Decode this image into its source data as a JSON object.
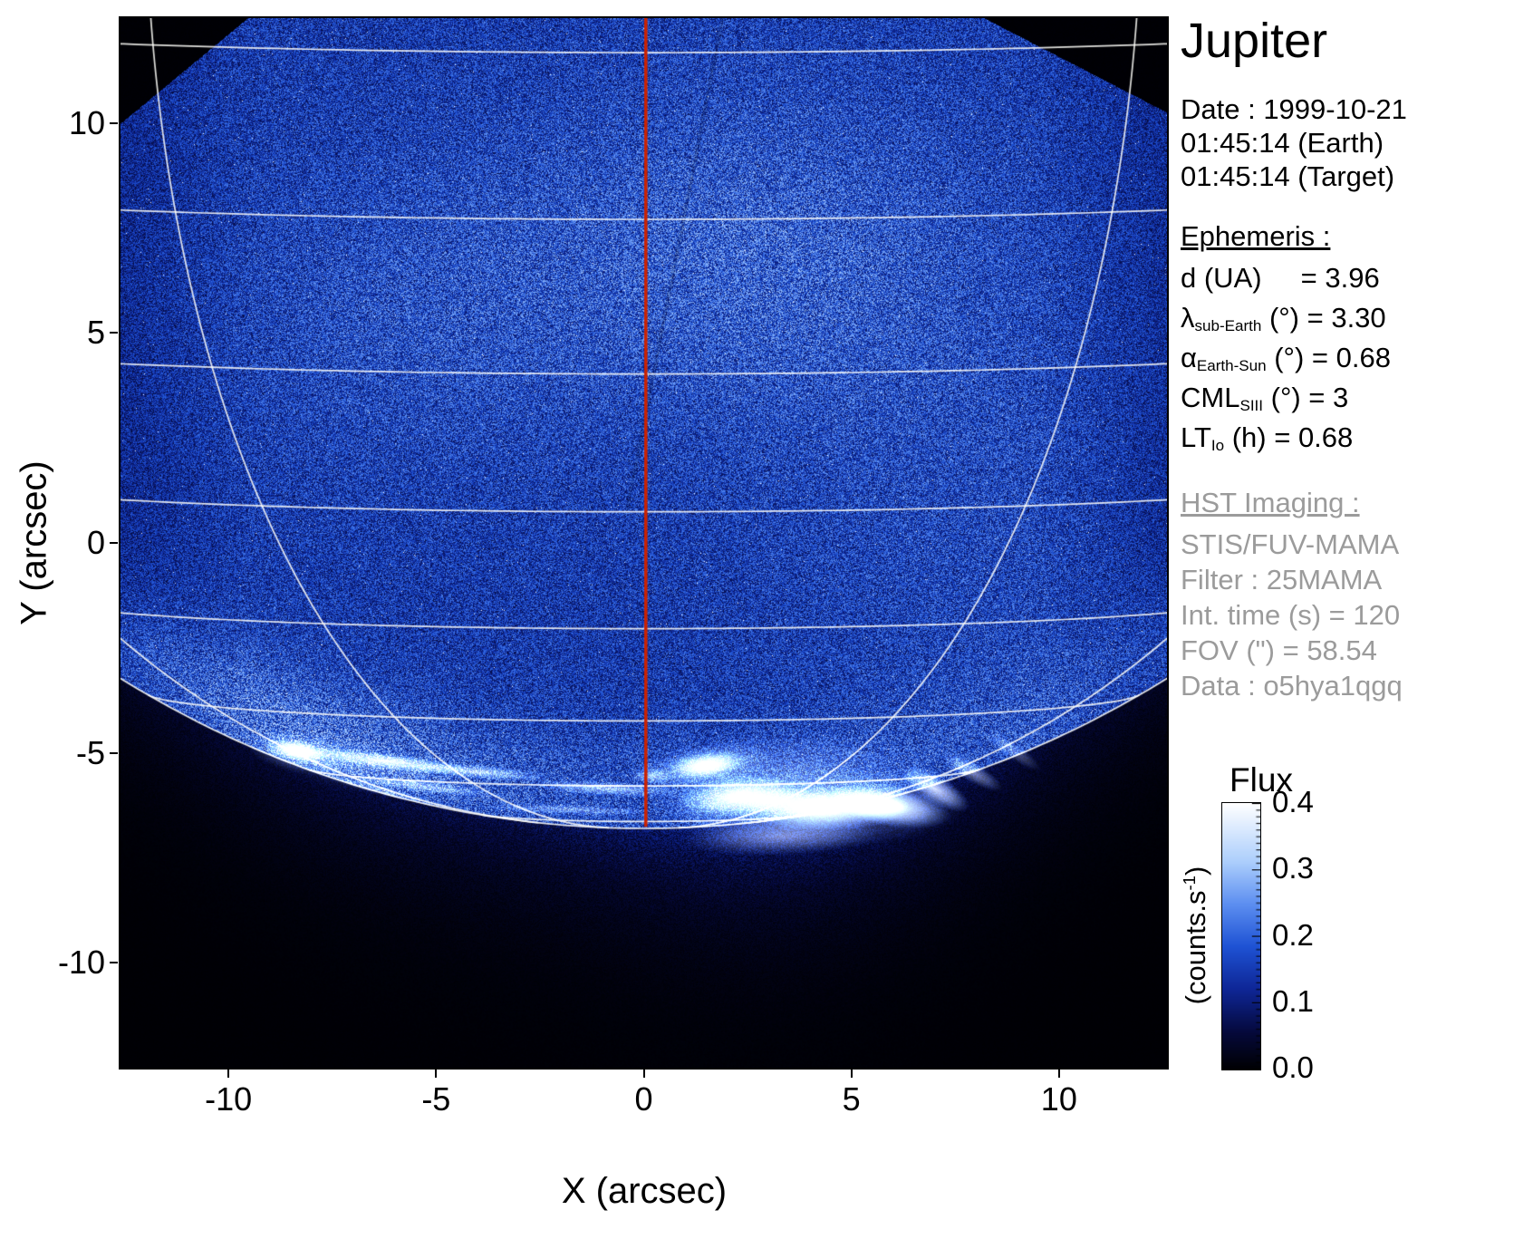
{
  "info_panel": {
    "title": "Jupiter",
    "date_line": "Date : 1999-10-21",
    "time_earth": "01:45:14 (Earth)",
    "time_target": "01:45:14 (Target)",
    "ephemeris_heading": "Ephemeris :",
    "ephemeris": [
      {
        "main": "d (UA)",
        "sub": "",
        "tail": "     = 3.96"
      },
      {
        "main": "λ",
        "sub": "sub-Earth",
        "tail": " (°) = 3.30"
      },
      {
        "main": "α",
        "sub": "Earth-Sun",
        "tail": " (°) = 0.68"
      },
      {
        "main": "CML",
        "sub": "SIII",
        "tail": " (°) = 3"
      },
      {
        "main": "LT",
        "sub": "Io",
        "tail": " (h) = 0.68"
      }
    ],
    "hst_heading": "HST Imaging :",
    "hst_lines": [
      "STIS/FUV-MAMA",
      "Filter : 25MAMA",
      "Int. time (s) = 120",
      "FOV (\") = 58.54",
      "Data : o5hya1qgq"
    ]
  },
  "colorbar": {
    "title": "Flux",
    "unit_pre": "(counts.s",
    "unit_sup": "-1",
    "unit_post": ")",
    "tick_labels": [
      "0.4",
      "0.3",
      "0.2",
      "0.1",
      "0.0"
    ],
    "min": 0.0,
    "max": 0.4
  },
  "chart_data": {
    "type": "heatmap",
    "title": "Jupiter — HST STIS/FUV-MAMA image of the southern FUV aurora",
    "xlabel": "X (arcsec)",
    "ylabel": "Y (arcsec)",
    "xlim": [
      -12.6,
      12.6
    ],
    "ylim": [
      -12.5,
      12.5
    ],
    "x_ticks": [
      -10,
      -5,
      0,
      5,
      10
    ],
    "y_ticks": [
      10,
      5,
      0,
      -5,
      -10
    ],
    "flux_min": 0.0,
    "flux_max": 0.4,
    "background_counts": 0.145,
    "colormap_stops": [
      [
        0.0,
        [
          0,
          0,
          3
        ]
      ],
      [
        0.14,
        [
          5,
          9,
          60
        ]
      ],
      [
        0.3,
        [
          14,
          38,
          150
        ]
      ],
      [
        0.46,
        [
          30,
          82,
          212
        ]
      ],
      [
        0.62,
        [
          92,
          142,
          240
        ]
      ],
      [
        0.78,
        [
          172,
          206,
          252
        ]
      ],
      [
        1.0,
        [
          255,
          255,
          255
        ]
      ]
    ],
    "aperture_polygon": [
      [
        -12.7,
        9.9
      ],
      [
        -9.4,
        12.6
      ],
      [
        8.0,
        12.6
      ],
      [
        12.7,
        10.2
      ],
      [
        12.7,
        -12.6
      ],
      [
        -12.7,
        -12.6
      ]
    ],
    "planet_grid": {
      "center_y_arcsec": 17.2,
      "radius_arcsec": 24.0,
      "subearth_lat_deg": 3.3,
      "cml_deg": 3,
      "parallels_deg": [
        -80,
        -70,
        -60,
        -50,
        -40,
        -30,
        -20,
        -10
      ],
      "meridians_deg": [
        -60,
        -30,
        30,
        60
      ],
      "grid_color": "rgba(255,255,250,0.88)",
      "cml_color": "#cc2200"
    },
    "aurora_features": [
      {
        "x": 4.0,
        "y": -6.25,
        "rx": 3.8,
        "ry": 1.05,
        "rot": 0,
        "i": 0.4
      },
      {
        "x": 3.5,
        "y": -5.35,
        "rx": 3.5,
        "ry": 0.9,
        "rot": 0,
        "i": 0.18
      },
      {
        "x": 2.3,
        "y": -6.05,
        "rx": 1.6,
        "ry": 0.5,
        "rot": 5,
        "i": 0.95
      },
      {
        "x": 4.3,
        "y": -6.3,
        "rx": 2.1,
        "ry": 0.55,
        "rot": 0,
        "i": 1.0
      },
      {
        "x": 5.9,
        "y": -6.25,
        "rx": 1.5,
        "ry": 0.5,
        "rot": -10,
        "i": 1.0
      },
      {
        "x": 7.0,
        "y": -5.85,
        "rx": 0.95,
        "ry": 0.34,
        "rot": -30,
        "i": 0.8
      },
      {
        "x": 7.9,
        "y": -5.45,
        "rx": 0.85,
        "ry": 0.24,
        "rot": -30,
        "i": 0.5
      },
      {
        "x": 8.9,
        "y": -4.95,
        "rx": 0.8,
        "ry": 0.2,
        "rot": -35,
        "i": 0.32
      },
      {
        "x": 3.3,
        "y": -7.0,
        "rx": 2.4,
        "ry": 0.45,
        "rot": 2,
        "i": 0.4
      },
      {
        "x": 1.5,
        "y": -5.3,
        "rx": 1.0,
        "ry": 0.33,
        "rot": 8,
        "i": 0.9
      },
      {
        "x": 1.5,
        "y": -5.35,
        "rx": 1.7,
        "ry": 0.6,
        "rot": 8,
        "i": 0.35
      },
      {
        "x": 0.2,
        "y": -5.55,
        "rx": 0.55,
        "ry": 0.2,
        "rot": 0,
        "i": 0.5
      },
      {
        "x": -8.35,
        "y": -4.95,
        "rx": 0.75,
        "ry": 0.26,
        "rot": -10,
        "i": 1.0
      },
      {
        "x": -8.2,
        "y": -5.0,
        "rx": 1.4,
        "ry": 0.5,
        "rot": -10,
        "i": 0.45
      },
      {
        "x": -6.2,
        "y": -5.2,
        "rx": 2.1,
        "ry": 0.2,
        "rot": -7,
        "i": 0.85
      },
      {
        "x": -4.0,
        "y": -5.45,
        "rx": 1.7,
        "ry": 0.17,
        "rot": -5,
        "i": 0.6
      },
      {
        "x": -5.3,
        "y": -5.8,
        "rx": 1.9,
        "ry": 0.14,
        "rot": -7,
        "i": 0.42
      },
      {
        "x": -6.5,
        "y": -5.4,
        "rx": 2.5,
        "ry": 0.6,
        "rot": -8,
        "i": 0.16
      },
      {
        "x": -0.9,
        "y": -5.85,
        "rx": 1.9,
        "ry": 0.18,
        "rot": -3,
        "i": 0.5
      },
      {
        "x": -1.8,
        "y": -6.35,
        "rx": 2.2,
        "ry": 0.13,
        "rot": -2,
        "i": 0.33
      },
      {
        "x": -6.3,
        "y": -5.9,
        "rx": 1.6,
        "ry": 0.11,
        "rot": -14,
        "i": 0.3
      }
    ]
  }
}
